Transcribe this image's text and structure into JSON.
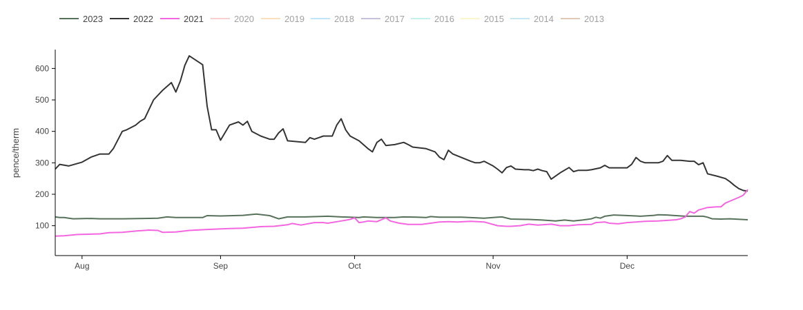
{
  "chart_data": {
    "type": "line",
    "title": "",
    "xlabel": "",
    "ylabel": "pence/therm",
    "x_range": [
      "2022-07-26",
      "2022-12-28"
    ],
    "ylim": [
      5,
      660
    ],
    "x_ticks": [
      {
        "date": "2022-08-01",
        "label": "Aug"
      },
      {
        "date": "2022-09-01",
        "label": "Sep"
      },
      {
        "date": "2022-10-01",
        "label": "Oct"
      },
      {
        "date": "2022-11-01",
        "label": "Nov"
      },
      {
        "date": "2022-12-01",
        "label": "Dec"
      }
    ],
    "y_ticks": [
      100,
      200,
      300,
      400,
      500,
      600
    ],
    "grid": false,
    "legend_position": "top-left",
    "series": [
      {
        "name": "2023",
        "color": "#56705a",
        "active": true,
        "points": [
          [
            "2022-07-26",
            128
          ],
          [
            "2022-07-27",
            126
          ],
          [
            "2022-07-28",
            126
          ],
          [
            "2022-07-30",
            122
          ],
          [
            "2022-08-03",
            123
          ],
          [
            "2022-08-05",
            122
          ],
          [
            "2022-08-10",
            122
          ],
          [
            "2022-08-15",
            123
          ],
          [
            "2022-08-18",
            124
          ],
          [
            "2022-08-20",
            128
          ],
          [
            "2022-08-22",
            126
          ],
          [
            "2022-08-26",
            126
          ],
          [
            "2022-08-28",
            126
          ],
          [
            "2022-08-29",
            132
          ],
          [
            "2022-09-01",
            131
          ],
          [
            "2022-09-06",
            133
          ],
          [
            "2022-09-09",
            137
          ],
          [
            "2022-09-12",
            132
          ],
          [
            "2022-09-14",
            122
          ],
          [
            "2022-09-16",
            128
          ],
          [
            "2022-09-20",
            128
          ],
          [
            "2022-09-25",
            130
          ],
          [
            "2022-09-28",
            128
          ],
          [
            "2022-09-30",
            127
          ],
          [
            "2022-10-02",
            126
          ],
          [
            "2022-10-03",
            128
          ],
          [
            "2022-10-06",
            126
          ],
          [
            "2022-10-10",
            126
          ],
          [
            "2022-10-12",
            128
          ],
          [
            "2022-10-15",
            127
          ],
          [
            "2022-10-17",
            126
          ],
          [
            "2022-10-18",
            129
          ],
          [
            "2022-10-20",
            127
          ],
          [
            "2022-10-25",
            127
          ],
          [
            "2022-10-30",
            124
          ],
          [
            "2022-11-02",
            127
          ],
          [
            "2022-11-03",
            128
          ],
          [
            "2022-11-05",
            121
          ],
          [
            "2022-11-09",
            120
          ],
          [
            "2022-11-12",
            118
          ],
          [
            "2022-11-15",
            115
          ],
          [
            "2022-11-17",
            118
          ],
          [
            "2022-11-19",
            115
          ],
          [
            "2022-11-21",
            118
          ],
          [
            "2022-11-23",
            122
          ],
          [
            "2022-11-24",
            127
          ],
          [
            "2022-11-25",
            124
          ],
          [
            "2022-11-26",
            130
          ],
          [
            "2022-11-28",
            134
          ],
          [
            "2022-11-30",
            133
          ],
          [
            "2022-12-03",
            131
          ],
          [
            "2022-12-04",
            130
          ],
          [
            "2022-12-07",
            133
          ],
          [
            "2022-12-08",
            135
          ],
          [
            "2022-12-10",
            134
          ],
          [
            "2022-12-11",
            133
          ],
          [
            "2022-12-14",
            130
          ],
          [
            "2022-12-16",
            130
          ],
          [
            "2022-12-18",
            130
          ],
          [
            "2022-12-19",
            127
          ],
          [
            "2022-12-20",
            122
          ],
          [
            "2022-12-22",
            121
          ],
          [
            "2022-12-24",
            122
          ],
          [
            "2022-12-28",
            119
          ]
        ]
      },
      {
        "name": "2022",
        "color": "#333333",
        "active": true,
        "points": [
          [
            "2022-07-26",
            280
          ],
          [
            "2022-07-27",
            295
          ],
          [
            "2022-07-29",
            290
          ],
          [
            "2022-08-01",
            302
          ],
          [
            "2022-08-02",
            310
          ],
          [
            "2022-08-03",
            318
          ],
          [
            "2022-08-05",
            328
          ],
          [
            "2022-08-07",
            328
          ],
          [
            "2022-08-08",
            345
          ],
          [
            "2022-08-10",
            400
          ],
          [
            "2022-08-11",
            405
          ],
          [
            "2022-08-13",
            420
          ],
          [
            "2022-08-14",
            432
          ],
          [
            "2022-08-15",
            440
          ],
          [
            "2022-08-16",
            470
          ],
          [
            "2022-08-17",
            500
          ],
          [
            "2022-08-19",
            530
          ],
          [
            "2022-08-21",
            555
          ],
          [
            "2022-08-22",
            525
          ],
          [
            "2022-08-23",
            560
          ],
          [
            "2022-08-24",
            610
          ],
          [
            "2022-08-25",
            640
          ],
          [
            "2022-08-28",
            612
          ],
          [
            "2022-08-29",
            480
          ],
          [
            "2022-08-30",
            405
          ],
          [
            "2022-08-31",
            405
          ],
          [
            "2022-09-01",
            372
          ],
          [
            "2022-09-03",
            420
          ],
          [
            "2022-09-05",
            430
          ],
          [
            "2022-09-06",
            420
          ],
          [
            "2022-09-07",
            432
          ],
          [
            "2022-09-08",
            400
          ],
          [
            "2022-09-10",
            385
          ],
          [
            "2022-09-12",
            375
          ],
          [
            "2022-09-13",
            375
          ],
          [
            "2022-09-14",
            395
          ],
          [
            "2022-09-15",
            408
          ],
          [
            "2022-09-16",
            370
          ],
          [
            "2022-09-20",
            365
          ],
          [
            "2022-09-21",
            380
          ],
          [
            "2022-09-22",
            375
          ],
          [
            "2022-09-23",
            380
          ],
          [
            "2022-09-24",
            385
          ],
          [
            "2022-09-26",
            385
          ],
          [
            "2022-09-27",
            420
          ],
          [
            "2022-09-28",
            440
          ],
          [
            "2022-09-29",
            405
          ],
          [
            "2022-09-30",
            385
          ],
          [
            "2022-10-02",
            370
          ],
          [
            "2022-10-04",
            345
          ],
          [
            "2022-10-05",
            335
          ],
          [
            "2022-10-06",
            365
          ],
          [
            "2022-10-07",
            375
          ],
          [
            "2022-10-08",
            355
          ],
          [
            "2022-10-10",
            358
          ],
          [
            "2022-10-12",
            365
          ],
          [
            "2022-10-13",
            358
          ],
          [
            "2022-10-14",
            350
          ],
          [
            "2022-10-17",
            345
          ],
          [
            "2022-10-19",
            335
          ],
          [
            "2022-10-20",
            318
          ],
          [
            "2022-10-21",
            310
          ],
          [
            "2022-10-22",
            340
          ],
          [
            "2022-10-23",
            328
          ],
          [
            "2022-10-27",
            305
          ],
          [
            "2022-10-28",
            300
          ],
          [
            "2022-10-29",
            300
          ],
          [
            "2022-10-30",
            305
          ],
          [
            "2022-11-01",
            290
          ],
          [
            "2022-11-02",
            280
          ],
          [
            "2022-11-03",
            268
          ],
          [
            "2022-11-04",
            285
          ],
          [
            "2022-11-05",
            290
          ],
          [
            "2022-11-06",
            280
          ],
          [
            "2022-11-08",
            278
          ],
          [
            "2022-11-09",
            278
          ],
          [
            "2022-11-10",
            275
          ],
          [
            "2022-11-11",
            280
          ],
          [
            "2022-11-12",
            275
          ],
          [
            "2022-11-13",
            272
          ],
          [
            "2022-11-14",
            248
          ],
          [
            "2022-11-16",
            268
          ],
          [
            "2022-11-18",
            285
          ],
          [
            "2022-11-19",
            272
          ],
          [
            "2022-11-20",
            276
          ],
          [
            "2022-11-22",
            276
          ],
          [
            "2022-11-23",
            278
          ],
          [
            "2022-11-25",
            284
          ],
          [
            "2022-11-26",
            292
          ],
          [
            "2022-11-27",
            284
          ],
          [
            "2022-11-28",
            284
          ],
          [
            "2022-12-01",
            284
          ],
          [
            "2022-12-02",
            295
          ],
          [
            "2022-12-03",
            317
          ],
          [
            "2022-12-04",
            305
          ],
          [
            "2022-12-05",
            300
          ],
          [
            "2022-12-06",
            300
          ],
          [
            "2022-12-08",
            300
          ],
          [
            "2022-12-09",
            305
          ],
          [
            "2022-12-10",
            323
          ],
          [
            "2022-12-11",
            308
          ],
          [
            "2022-12-13",
            308
          ],
          [
            "2022-12-15",
            305
          ],
          [
            "2022-12-16",
            305
          ],
          [
            "2022-12-17",
            294
          ],
          [
            "2022-12-18",
            300
          ],
          [
            "2022-12-19",
            265
          ],
          [
            "2022-12-21",
            258
          ],
          [
            "2022-12-23",
            250
          ],
          [
            "2022-12-24",
            240
          ],
          [
            "2022-12-25",
            228
          ],
          [
            "2022-12-26",
            218
          ],
          [
            "2022-12-27",
            212
          ],
          [
            "2022-12-28",
            210
          ]
        ]
      },
      {
        "name": "2021",
        "color": "#f465e0",
        "active": true,
        "points": [
          [
            "2022-07-26",
            67
          ],
          [
            "2022-07-28",
            68
          ],
          [
            "2022-07-31",
            72
          ],
          [
            "2022-08-05",
            74
          ],
          [
            "2022-08-07",
            78
          ],
          [
            "2022-08-10",
            79
          ],
          [
            "2022-08-13",
            83
          ],
          [
            "2022-08-16",
            86
          ],
          [
            "2022-08-18",
            85
          ],
          [
            "2022-08-19",
            79
          ],
          [
            "2022-08-22",
            80
          ],
          [
            "2022-08-25",
            85
          ],
          [
            "2022-08-29",
            88
          ],
          [
            "2022-09-03",
            91
          ],
          [
            "2022-09-06",
            92
          ],
          [
            "2022-09-10",
            97
          ],
          [
            "2022-09-13",
            98
          ],
          [
            "2022-09-16",
            103
          ],
          [
            "2022-09-17",
            107
          ],
          [
            "2022-09-19",
            102
          ],
          [
            "2022-09-22",
            110
          ],
          [
            "2022-09-24",
            110
          ],
          [
            "2022-09-25",
            108
          ],
          [
            "2022-09-28",
            115
          ],
          [
            "2022-09-30",
            120
          ],
          [
            "2022-10-01",
            125
          ],
          [
            "2022-10-02",
            110
          ],
          [
            "2022-10-03",
            112
          ],
          [
            "2022-10-04",
            115
          ],
          [
            "2022-10-06",
            113
          ],
          [
            "2022-10-08",
            125
          ],
          [
            "2022-10-09",
            115
          ],
          [
            "2022-10-11",
            108
          ],
          [
            "2022-10-13",
            104
          ],
          [
            "2022-10-16",
            104
          ],
          [
            "2022-10-18",
            108
          ],
          [
            "2022-10-20",
            112
          ],
          [
            "2022-10-22",
            113
          ],
          [
            "2022-10-24",
            112
          ],
          [
            "2022-10-27",
            114
          ],
          [
            "2022-10-30",
            112
          ],
          [
            "2022-11-02",
            100
          ],
          [
            "2022-11-04",
            98
          ],
          [
            "2022-11-05",
            98
          ],
          [
            "2022-11-07",
            100
          ],
          [
            "2022-11-09",
            105
          ],
          [
            "2022-11-11",
            102
          ],
          [
            "2022-11-14",
            105
          ],
          [
            "2022-11-16",
            100
          ],
          [
            "2022-11-18",
            100
          ],
          [
            "2022-11-20",
            103
          ],
          [
            "2022-11-23",
            104
          ],
          [
            "2022-11-24",
            110
          ],
          [
            "2022-11-26",
            112
          ],
          [
            "2022-11-27",
            108
          ],
          [
            "2022-11-29",
            106
          ],
          [
            "2022-12-01",
            110
          ],
          [
            "2022-12-03",
            112
          ],
          [
            "2022-12-05",
            114
          ],
          [
            "2022-12-08",
            115
          ],
          [
            "2022-12-10",
            117
          ],
          [
            "2022-12-12",
            119
          ],
          [
            "2022-12-13",
            122
          ],
          [
            "2022-12-14",
            128
          ],
          [
            "2022-12-15",
            145
          ],
          [
            "2022-12-16",
            140
          ],
          [
            "2022-12-17",
            150
          ],
          [
            "2022-12-19",
            158
          ],
          [
            "2022-12-21",
            160
          ],
          [
            "2022-12-22",
            160
          ],
          [
            "2022-12-23",
            172
          ],
          [
            "2022-12-24",
            178
          ],
          [
            "2022-12-26",
            190
          ],
          [
            "2022-12-27",
            197
          ],
          [
            "2022-12-28",
            215
          ]
        ]
      },
      {
        "name": "2020",
        "color": "#f4a0a0",
        "active": false
      },
      {
        "name": "2019",
        "color": "#fbc17d",
        "active": false
      },
      {
        "name": "2018",
        "color": "#7fcdf7",
        "active": false
      },
      {
        "name": "2017",
        "color": "#8e82b8",
        "active": false
      },
      {
        "name": "2016",
        "color": "#8be3d7",
        "active": false
      },
      {
        "name": "2015",
        "color": "#f7ec9c",
        "active": false
      },
      {
        "name": "2014",
        "color": "#8fd3e8",
        "active": false
      },
      {
        "name": "2013",
        "color": "#c2946c",
        "active": false
      }
    ]
  }
}
